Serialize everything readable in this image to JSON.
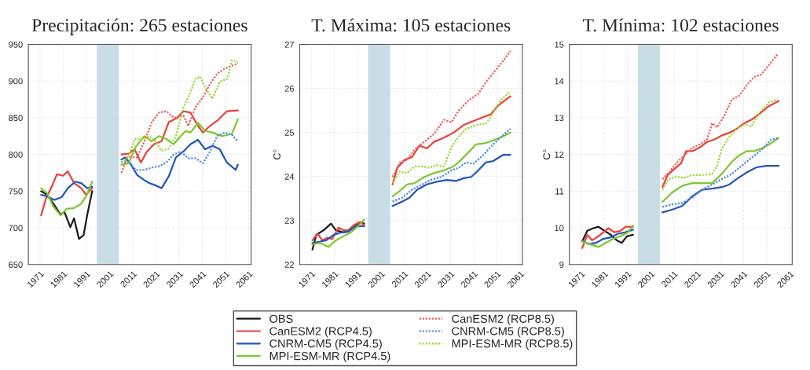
{
  "chart_data": [
    {
      "type": "line",
      "title": "Precipitación: 265 estaciones",
      "xlim": [
        1966,
        2062
      ],
      "xticks": [
        1971,
        1981,
        1991,
        2001,
        2011,
        2021,
        2031,
        2041,
        2051,
        2061
      ],
      "ylim": [
        650,
        950
      ],
      "yticks": [
        650,
        700,
        750,
        800,
        850,
        900,
        950
      ],
      "grid": true,
      "legend": "bottom",
      "bands": [
        {
          "axis": "x",
          "from": 1995.5,
          "to": 2005,
          "color": "#c9dde6"
        }
      ],
      "series": [
        {
          "name": "OBS",
          "color": "#1a1a1a",
          "line_style": "solid",
          "x": [
            1971.5,
            1974.1,
            1976.8,
            1979.9,
            1981.5,
            1984.1,
            1985.7,
            1987.8,
            1989.8,
            1991.4,
            1993.5
          ],
          "values": [
            750,
            745,
            733,
            718,
            722,
            701,
            713,
            685,
            690,
            718,
            750
          ]
        },
        {
          "name": "CanESM2 (RCP4.5)",
          "color": "#e8413c",
          "line_style": "solid",
          "x": [
            1971.5,
            1973.6,
            1976.2,
            1978.3,
            1980.9,
            1983,
            1985.7,
            1988.8,
            1990.9,
            1993.5,
            2000,
            2006.1,
            2009.2,
            2011.8,
            2014.5,
            2017.1,
            2020.2,
            2023.4,
            2026.5,
            2030.2,
            2032.8,
            2035.9,
            2039.1,
            2041.2,
            2044.3,
            2047.4,
            2051.6,
            2056.3
          ],
          "values": [
            717,
            740,
            757,
            773,
            771,
            777,
            761,
            754,
            745,
            754,
            null,
            800,
            801,
            807,
            789,
            804,
            814,
            818,
            844,
            850,
            859,
            857,
            839,
            830,
            839,
            846,
            859,
            860
          ]
        },
        {
          "name": "CNRM-CM5 (RCP4.5)",
          "color": "#2455b8",
          "line_style": "solid",
          "x": [
            1971.5,
            1974.1,
            1977.3,
            1980.4,
            1983,
            1986.2,
            1988.8,
            1991.4,
            1993.5,
            2000,
            2006.1,
            2007.6,
            2009.7,
            2012.9,
            2016,
            2018.1,
            2020.7,
            2023.4,
            2026.5,
            2029.6,
            2032.8,
            2035.9,
            2039.1,
            2042.2,
            2045.3,
            2048.5,
            2051.6,
            2055.3,
            2056.3
          ],
          "values": [
            745,
            743,
            738,
            742,
            754,
            763,
            761,
            754,
            756,
            null,
            793,
            796,
            789,
            772,
            765,
            761,
            758,
            754,
            770,
            796,
            804,
            814,
            820,
            807,
            812,
            807,
            789,
            779,
            786
          ]
        },
        {
          "name": "MPI-ESM-MR (RCP4.5)",
          "color": "#7ec630",
          "line_style": "solid",
          "x": [
            1971.5,
            1974.1,
            1976.8,
            1979.9,
            1982.5,
            1985.7,
            1988.8,
            1990.9,
            1993.5,
            2000,
            2006.1,
            2009.2,
            2012.4,
            2016,
            2019.2,
            2022.3,
            2025.5,
            2028.6,
            2031.7,
            2033.8,
            2035.9,
            2039.1,
            2042.2,
            2045.3,
            2049.5,
            2053.7,
            2056.3
          ],
          "values": [
            754,
            747,
            729,
            717,
            726,
            727,
            733,
            743,
            763,
            null,
            786,
            788,
            811,
            825,
            818,
            825,
            821,
            814,
            825,
            832,
            830,
            843,
            832,
            830,
            825,
            828,
            848
          ]
        },
        {
          "name": "CanESM2 (RCP8.5)",
          "color": "#f05a5a",
          "line_style": "dotted",
          "x": [
            2006.1,
            2008.7,
            2012.9,
            2016,
            2019.2,
            2022.3,
            2025.5,
            2028.6,
            2032.8,
            2034.9,
            2038,
            2041.2,
            2044.3,
            2047.4,
            2050.6,
            2053.7,
            2056.3
          ],
          "values": [
            775,
            796,
            796,
            818,
            844,
            857,
            859,
            850,
            853,
            839,
            864,
            878,
            896,
            910,
            917,
            921,
            924
          ]
        },
        {
          "name": "CNRM-CM5 (RCP8.5)",
          "color": "#4f86e0",
          "line_style": "dotted",
          "x": [
            2006.1,
            2008.7,
            2012.4,
            2016,
            2019.2,
            2022.3,
            2025.5,
            2028.6,
            2031.7,
            2034.9,
            2038,
            2041.2,
            2044.3,
            2047.4,
            2050.6,
            2053.7,
            2056.3
          ],
          "values": [
            789,
            791,
            779,
            779,
            782,
            784,
            789,
            800,
            804,
            795,
            795,
            788,
            804,
            825,
            830,
            827,
            818
          ]
        },
        {
          "name": "MPI-ESM-MR (RCP8.5)",
          "color": "#9ad834",
          "line_style": "dotted",
          "x": [
            2006.1,
            2009.2,
            2011.8,
            2015,
            2018.1,
            2020.7,
            2023.4,
            2026.5,
            2029.6,
            2032.8,
            2035.9,
            2038,
            2040.1,
            2042.2,
            2045.3,
            2048.5,
            2051.6,
            2053.7,
            2056.3
          ],
          "values": [
            789,
            796,
            821,
            821,
            825,
            818,
            805,
            808,
            825,
            864,
            885,
            903,
            906,
            892,
            876,
            899,
            903,
            928,
            926
          ]
        }
      ]
    },
    {
      "type": "line",
      "title": "T. Máxima: 105 estaciones",
      "ylabel": "C°",
      "xlim": [
        1966,
        2062
      ],
      "xticks": [
        1971,
        1981,
        1991,
        2001,
        2011,
        2021,
        2031,
        2041,
        2051,
        2061
      ],
      "ylim": [
        22,
        27
      ],
      "yticks": [
        22,
        23,
        24,
        25,
        26,
        27
      ],
      "grid": true,
      "legend": "bottom",
      "bands": [
        {
          "axis": "x",
          "from": 1995.5,
          "to": 2005,
          "color": "#c9dde6"
        }
      ],
      "series": [
        {
          "name": "OBS",
          "color": "#1a1a1a",
          "line_style": "solid",
          "x": [
            1971.5,
            1973.1,
            1976.3,
            1979.5,
            1981.6,
            1984.8,
            1986.9,
            1989.5,
            1992.2,
            1993.8
          ],
          "values": [
            22.34,
            22.67,
            22.78,
            22.93,
            22.78,
            22.73,
            22.75,
            22.87,
            22.96,
            22.93
          ]
        },
        {
          "name": "CanESM2 (RCP4.5)",
          "color": "#e8413c",
          "line_style": "solid",
          "x": [
            1971.5,
            1973.6,
            1975.8,
            1977.9,
            1980,
            1982.7,
            1984.8,
            1986.9,
            1989.5,
            1991.7,
            1993.8,
            2000,
            2006,
            2008.1,
            2011.3,
            2014.4,
            2017.6,
            2020.8,
            2024,
            2028.2,
            2032.4,
            2036.7,
            2040.9,
            2045.2,
            2048.3,
            2051.5,
            2056.8
          ],
          "values": [
            22.55,
            22.7,
            22.55,
            22.61,
            22.58,
            22.84,
            22.78,
            22.78,
            22.9,
            22.96,
            22.9,
            null,
            23.82,
            24.2,
            24.38,
            24.44,
            24.7,
            24.64,
            24.79,
            24.88,
            25.0,
            25.17,
            25.26,
            25.35,
            25.41,
            25.61,
            25.82
          ]
        },
        {
          "name": "CNRM-CM5 (RCP4.5)",
          "color": "#2455b8",
          "line_style": "solid",
          "x": [
            1971.5,
            1974.7,
            1977.4,
            1980.5,
            1983.7,
            1986.9,
            1990.1,
            1993.8,
            2000,
            2006,
            2010.2,
            2013.4,
            2016.6,
            2020.8,
            2025,
            2029.3,
            2033.5,
            2036.7,
            2039.9,
            2043,
            2046.2,
            2049.4,
            2053.6,
            2056.8
          ],
          "values": [
            22.49,
            22.52,
            22.55,
            22.67,
            22.73,
            22.75,
            22.87,
            22.87,
            null,
            23.33,
            23.43,
            23.52,
            23.7,
            23.82,
            23.88,
            23.92,
            23.9,
            23.96,
            23.99,
            24.14,
            24.32,
            24.35,
            24.49,
            24.49
          ]
        },
        {
          "name": "MPI-ESM-MR (RCP4.5)",
          "color": "#7ec630",
          "line_style": "solid",
          "x": [
            1971.5,
            1974.7,
            1978.4,
            1981.6,
            1984.8,
            1988,
            1991.1,
            1993.8,
            2000,
            2006,
            2009.1,
            2012.3,
            2015.5,
            2019.7,
            2024,
            2028.2,
            2032.4,
            2035.6,
            2038.8,
            2042,
            2046.2,
            2049.4,
            2053.6,
            2056.8
          ],
          "values": [
            22.46,
            22.49,
            22.4,
            22.55,
            22.64,
            22.73,
            22.87,
            23.02,
            null,
            23.55,
            23.67,
            23.82,
            23.85,
            23.99,
            24.08,
            24.14,
            24.23,
            24.38,
            24.55,
            24.73,
            24.76,
            24.82,
            24.91,
            25.0
          ]
        },
        {
          "name": "CanESM2 (RCP8.5)",
          "color": "#f05a5a",
          "line_style": "dotted",
          "x": [
            2006,
            2009.1,
            2012.3,
            2015.5,
            2019.7,
            2024,
            2028.2,
            2031.4,
            2034.6,
            2038.8,
            2043,
            2046.2,
            2049.4,
            2053.6,
            2056.8
          ],
          "values": [
            23.99,
            24.32,
            24.38,
            24.61,
            24.79,
            24.97,
            25.29,
            25.23,
            25.5,
            25.73,
            25.88,
            26.14,
            26.35,
            26.62,
            26.85
          ]
        },
        {
          "name": "CNRM-CM5 (RCP8.5)",
          "color": "#4f86e0",
          "line_style": "dotted",
          "x": [
            2006,
            2010.2,
            2014.4,
            2018.7,
            2022.9,
            2027.1,
            2031.4,
            2034.6,
            2037.7,
            2040.9,
            2045.2,
            2049.4,
            2053.6,
            2056.8
          ],
          "values": [
            23.43,
            23.52,
            23.7,
            23.82,
            23.93,
            23.99,
            24.14,
            24.2,
            24.32,
            24.29,
            24.49,
            24.73,
            24.94,
            25.08
          ]
        },
        {
          "name": "MPI-ESM-MR (RCP8.5)",
          "color": "#9ad834",
          "line_style": "dotted",
          "x": [
            2006,
            2009.1,
            2012.3,
            2015.5,
            2018.7,
            2021.8,
            2025,
            2028.2,
            2031.4,
            2034.6,
            2037.7,
            2042,
            2046.2,
            2049.4,
            2052.6,
            2056.8
          ],
          "values": [
            23.85,
            24.11,
            24.08,
            24.23,
            24.23,
            24.2,
            24.26,
            24.23,
            24.67,
            24.91,
            25.08,
            25.17,
            25.2,
            25.44,
            25.73,
            25.94
          ]
        }
      ]
    },
    {
      "type": "line",
      "title": "T. Mínima: 102 estaciones",
      "ylabel": "C°",
      "xlim": [
        1966,
        2062
      ],
      "xticks": [
        1971,
        1981,
        1991,
        2001,
        2011,
        2021,
        2031,
        2041,
        2051,
        2061
      ],
      "ylim": [
        9,
        15
      ],
      "yticks": [
        9,
        10,
        11,
        12,
        13,
        14,
        15
      ],
      "grid": true,
      "legend": "bottom",
      "bands": [
        {
          "axis": "x",
          "from": 1995.5,
          "to": 2005,
          "color": "#c9dde6"
        }
      ],
      "series": [
        {
          "name": "OBS",
          "color": "#1a1a1a",
          "line_style": "solid",
          "x": [
            1971.5,
            1973.7,
            1976.3,
            1978.5,
            1981.1,
            1983.8,
            1986.4,
            1988.6,
            1990.7,
            1993.4
          ],
          "values": [
            9.63,
            9.92,
            9.99,
            10.03,
            9.92,
            9.81,
            9.66,
            9.59,
            9.77,
            9.81
          ]
        },
        {
          "name": "CanESM2 (RCP4.5)",
          "color": "#e8413c",
          "line_style": "solid",
          "x": [
            1971.5,
            1973.7,
            1975.8,
            1978.5,
            1980.6,
            1982.7,
            1985.4,
            1988,
            1990.2,
            1993.4,
            2000,
            2006.1,
            2008.3,
            2011.5,
            2014.1,
            2016.3,
            2018.9,
            2022.1,
            2025.3,
            2028.5,
            2031.7,
            2034.9,
            2038.1,
            2041.3,
            2044.5,
            2047.7,
            2052,
            2056.2
          ],
          "values": [
            9.45,
            9.81,
            9.66,
            9.77,
            9.88,
            9.99,
            9.88,
            9.92,
            10.03,
            10.03,
            null,
            11.11,
            11.44,
            11.62,
            11.76,
            12.09,
            12.09,
            12.19,
            12.34,
            12.41,
            12.52,
            12.59,
            12.7,
            12.85,
            12.95,
            13.1,
            13.32,
            13.46
          ]
        },
        {
          "name": "CNRM-CM5 (RCP4.5)",
          "color": "#2455b8",
          "line_style": "solid",
          "x": [
            1971.5,
            1974.2,
            1977.4,
            1980.6,
            1983.8,
            1987,
            1990.2,
            1993.4,
            2000,
            2006.1,
            2010.4,
            2014.7,
            2018.9,
            2023.2,
            2027.5,
            2031.7,
            2034.9,
            2038.1,
            2042.4,
            2046.6,
            2050.9,
            2056.2
          ],
          "values": [
            9.66,
            9.56,
            9.59,
            9.7,
            9.74,
            9.84,
            9.88,
            9.95,
            null,
            10.42,
            10.5,
            10.6,
            10.86,
            11.04,
            11.07,
            11.11,
            11.18,
            11.33,
            11.51,
            11.65,
            11.69,
            11.69
          ]
        },
        {
          "name": "MPI-ESM-MR (RCP4.5)",
          "color": "#7ec630",
          "line_style": "solid",
          "x": [
            1971.5,
            1974.7,
            1978.5,
            1981.6,
            1984.8,
            1988,
            1991.2,
            1993.4,
            2000,
            2006.1,
            2010.4,
            2014.7,
            2018.9,
            2023.2,
            2027.5,
            2031.7,
            2036,
            2039.2,
            2042.4,
            2045.5,
            2048.7,
            2052,
            2056.2
          ],
          "values": [
            9.63,
            9.56,
            9.48,
            9.59,
            9.7,
            9.77,
            9.88,
            10.06,
            null,
            10.71,
            10.97,
            11.15,
            11.22,
            11.22,
            11.22,
            11.47,
            11.8,
            11.98,
            12.09,
            12.09,
            12.16,
            12.27,
            12.45
          ]
        },
        {
          "name": "CanESM2 (RCP8.5)",
          "color": "#f05a5a",
          "line_style": "dotted",
          "x": [
            2006.1,
            2009.3,
            2012.5,
            2015.7,
            2018.9,
            2022.1,
            2025.3,
            2027.5,
            2029.6,
            2032.8,
            2036,
            2039.2,
            2042.4,
            2045.5,
            2048.7,
            2052,
            2055.7
          ],
          "values": [
            11.33,
            11.54,
            11.8,
            11.98,
            12.19,
            12.27,
            12.41,
            12.85,
            12.74,
            13.06,
            13.5,
            13.6,
            13.89,
            14.11,
            14.18,
            14.44,
            14.73
          ]
        },
        {
          "name": "CNRM-CM5 (RCP8.5)",
          "color": "#4f86e0",
          "line_style": "dotted",
          "x": [
            2006.1,
            2010.4,
            2014.7,
            2018.9,
            2023.2,
            2027.5,
            2031.7,
            2036,
            2040.2,
            2044.5,
            2048.7,
            2053,
            2056.2
          ],
          "values": [
            10.57,
            10.64,
            10.68,
            10.82,
            11.04,
            11.18,
            11.33,
            11.47,
            11.69,
            11.91,
            12.12,
            12.41,
            12.45
          ]
        },
        {
          "name": "MPI-ESM-MR (RCP8.5)",
          "color": "#9ad834",
          "line_style": "dotted",
          "x": [
            2006.1,
            2008.8,
            2012,
            2015.2,
            2018.9,
            2023.2,
            2027.5,
            2029.6,
            2031.7,
            2034.9,
            2038.1,
            2041.3,
            2044.5,
            2047.7,
            2052,
            2055.7
          ],
          "values": [
            11.04,
            11.33,
            11.4,
            11.36,
            11.44,
            11.44,
            11.47,
            11.69,
            12.16,
            12.48,
            12.7,
            12.81,
            12.77,
            13.13,
            13.42,
            13.5
          ]
        }
      ]
    }
  ]
}
